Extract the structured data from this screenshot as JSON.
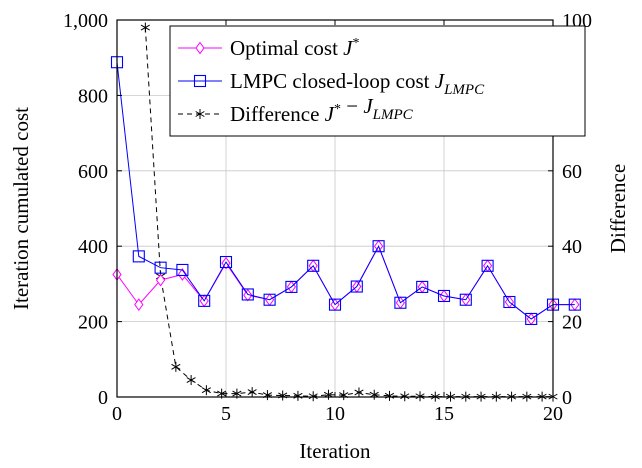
{
  "chart_data": {
    "type": "line",
    "xlabel": "Iteration",
    "ylabel": "Iteration cumulated cost",
    "y2label": "Difference",
    "xlim": [
      0,
      20
    ],
    "ylim": [
      0,
      1000
    ],
    "y2lim": [
      0,
      100
    ],
    "xticks": [
      0,
      5,
      10,
      15,
      20
    ],
    "yticks": [
      0,
      200,
      400,
      600,
      800,
      1000
    ],
    "y2ticks": [
      0,
      20,
      40,
      60,
      80,
      100
    ],
    "xtick_labels": [
      "0",
      "5",
      "10",
      "15",
      "20"
    ],
    "ytick_labels": [
      "0",
      "200",
      "400",
      "600",
      "800",
      "1,000"
    ],
    "y2tick_labels": [
      "0",
      "20",
      "40",
      "60",
      "80",
      "100"
    ],
    "grid": true,
    "legend_position": "top-right",
    "series": [
      {
        "name": "Optimal cost J*",
        "axis": "left",
        "color": "#ff00ff",
        "marker": "diamond",
        "line": "solid",
        "x": [
          0,
          1,
          2,
          3,
          4,
          5,
          6,
          7,
          8,
          9,
          10,
          11,
          12,
          13,
          14,
          15,
          16,
          17,
          18,
          19,
          20,
          21
        ],
        "values": [
          325,
          245,
          310,
          325,
          255,
          355,
          270,
          258,
          292,
          348,
          245,
          293,
          400,
          250,
          292,
          268,
          258,
          348,
          252,
          207,
          245,
          245
        ]
      },
      {
        "name": "LMPC closed-loop cost J_LMPC",
        "axis": "left",
        "color": "#0000ff",
        "marker": "square",
        "line": "solid",
        "x": [
          0,
          1,
          2,
          3,
          4,
          5,
          6,
          7,
          8,
          9,
          10,
          11,
          12,
          13,
          14,
          15,
          16,
          17,
          18,
          19,
          20,
          21
        ],
        "values": [
          888,
          373,
          343,
          337,
          255,
          358,
          272,
          258,
          292,
          348,
          245,
          293,
          400,
          250,
          292,
          268,
          258,
          348,
          252,
          207,
          245,
          245
        ]
      },
      {
        "name": "Difference J* − J_LMPC",
        "axis": "right",
        "color": "#000000",
        "marker": "star",
        "line": "dashed",
        "x": [
          1.3,
          2,
          2.7,
          3.4,
          4.1,
          4.8,
          5.5,
          6.2,
          6.9,
          7.6,
          8.3,
          9,
          9.7,
          10.4,
          11.1,
          11.8,
          12.5,
          13.2,
          13.9,
          14.6,
          15.3,
          16,
          16.7,
          17.4,
          18.1,
          18.8,
          19.5,
          20
        ],
        "values": [
          98,
          32,
          8,
          4.5,
          1.8,
          0.9,
          0.9,
          1.3,
          0.5,
          0.4,
          0.3,
          0.2,
          0.6,
          0.5,
          1.2,
          0.6,
          0.3,
          0.2,
          0.2,
          0.1,
          0.1,
          0.1,
          0.1,
          0.1,
          0.1,
          0.1,
          0.1,
          0.1
        ]
      }
    ]
  },
  "legend": {
    "entries": [
      {
        "label": "Optimal cost ",
        "math": "J",
        "sup": "*",
        "sub": "",
        "tail": ""
      },
      {
        "label": "LMPC closed-loop cost ",
        "math": "J",
        "sup": "",
        "sub": "LMPC",
        "tail": ""
      },
      {
        "label": "Difference ",
        "math": "J",
        "sup": "*",
        "sub": "",
        "tail": " − J",
        "tail_sub": "LMPC"
      }
    ]
  }
}
